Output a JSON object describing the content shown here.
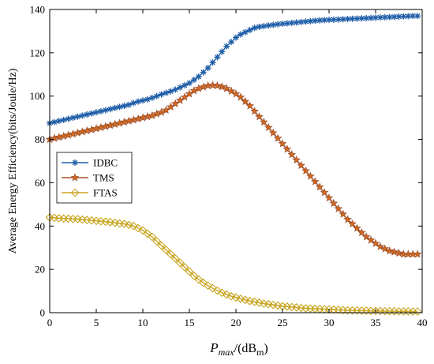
{
  "chart_data": {
    "type": "line",
    "ylabel": "Average Energy Efficiency(bits/Joule/Hz)",
    "xlabel_parts": {
      "var": "P",
      "sub": "max",
      "mid": "/(dB",
      "unit_sub": "m",
      "end": ")"
    },
    "xlim": [
      0,
      40
    ],
    "ylim": [
      0,
      140
    ],
    "xticks": [
      0,
      5,
      10,
      15,
      20,
      25,
      30,
      35,
      40
    ],
    "yticks": [
      0,
      20,
      40,
      60,
      80,
      100,
      120,
      140
    ],
    "legend_position": "center-left",
    "grid": false,
    "x": [
      0,
      0.5,
      1,
      1.5,
      2,
      2.5,
      3,
      3.5,
      4,
      4.5,
      5,
      5.5,
      6,
      6.5,
      7,
      7.5,
      8,
      8.5,
      9,
      9.5,
      10,
      10.5,
      11,
      11.5,
      12,
      12.5,
      13,
      13.5,
      14,
      14.5,
      15,
      15.5,
      16,
      16.5,
      17,
      17.5,
      18,
      18.5,
      19,
      19.5,
      20,
      20.5,
      21,
      21.5,
      22,
      22.5,
      23,
      23.5,
      24,
      24.5,
      25,
      25.5,
      26,
      26.5,
      27,
      27.5,
      28,
      28.5,
      29,
      29.5,
      30,
      30.5,
      31,
      31.5,
      32,
      32.5,
      33,
      33.5,
      34,
      34.5,
      35,
      35.5,
      36,
      36.5,
      37,
      37.5,
      38,
      38.5,
      39,
      39.5
    ],
    "series": [
      {
        "name": "IDBC",
        "color": "#1f5ea8",
        "marker": "asterisk",
        "values": [
          87.5,
          88,
          88.5,
          89,
          89.5,
          90,
          90.5,
          91,
          91.5,
          92,
          92.5,
          93,
          93.5,
          94,
          94.5,
          95,
          95.5,
          96,
          96.8,
          97.5,
          98,
          98.5,
          99.2,
          100,
          100.8,
          101.5,
          102.2,
          103,
          104,
          105,
          106,
          107.5,
          109,
          111,
          113,
          115.5,
          118,
          120.5,
          123,
          125,
          127,
          128.5,
          129.5,
          130.5,
          131.5,
          132,
          132.3,
          132.6,
          132.9,
          133.2,
          133.4,
          133.6,
          133.8,
          134,
          134.2,
          134.4,
          134.6,
          134.8,
          135,
          135.1,
          135.2,
          135.3,
          135.4,
          135.5,
          135.6,
          135.7,
          135.8,
          135.9,
          136,
          136.1,
          136.2,
          136.3,
          136.4,
          136.5,
          136.6,
          136.7,
          136.8,
          136.9,
          137,
          137
        ]
      },
      {
        "name": "TMS",
        "color": "#a0522d",
        "marker": "star",
        "values": [
          80,
          80.5,
          81,
          81.5,
          82,
          82.5,
          83,
          83.5,
          84,
          84.5,
          85,
          85.5,
          86,
          86.5,
          87,
          87.5,
          88,
          88.5,
          89,
          89.5,
          90,
          90.5,
          91,
          91.8,
          92.5,
          93.5,
          95,
          96.5,
          98,
          99.5,
          101,
          102.5,
          103.5,
          104.2,
          104.8,
          105,
          104.8,
          104.3,
          103.5,
          102.3,
          101,
          99.5,
          97.5,
          95.5,
          93,
          90.5,
          88,
          85.5,
          83,
          80.5,
          78,
          75.5,
          73,
          70.5,
          68,
          65.5,
          63,
          60.5,
          58,
          55.5,
          53,
          50.5,
          48,
          45.5,
          43,
          41,
          39,
          37,
          35,
          33.5,
          32,
          30.5,
          29.5,
          28.5,
          28,
          27.5,
          27,
          27,
          27,
          27
        ]
      },
      {
        "name": "FTAS",
        "color": "#c8a41e",
        "marker": "diamond",
        "values": [
          44,
          43.8,
          43.6,
          43.5,
          43.4,
          43.3,
          43.2,
          43,
          42.8,
          42.6,
          42.4,
          42.2,
          42,
          41.8,
          41.5,
          41.2,
          41,
          40.5,
          40,
          39,
          38,
          36.5,
          35,
          33,
          31,
          29,
          27,
          25,
          23,
          21,
          19,
          17,
          15.3,
          13.8,
          12.5,
          11.3,
          10.2,
          9.2,
          8.4,
          7.6,
          7,
          6.4,
          5.9,
          5.4,
          5,
          4.6,
          4.2,
          3.9,
          3.6,
          3.3,
          3,
          2.8,
          2.6,
          2.4,
          2.2,
          2,
          1.9,
          1.8,
          1.7,
          1.6,
          1.5,
          1.4,
          1.3,
          1.2,
          1.1,
          1,
          1,
          0.9,
          0.9,
          0.8,
          0.8,
          0.8,
          0.7,
          0.7,
          0.7,
          0.6,
          0.6,
          0.6,
          0.5,
          0.5
        ]
      }
    ]
  }
}
